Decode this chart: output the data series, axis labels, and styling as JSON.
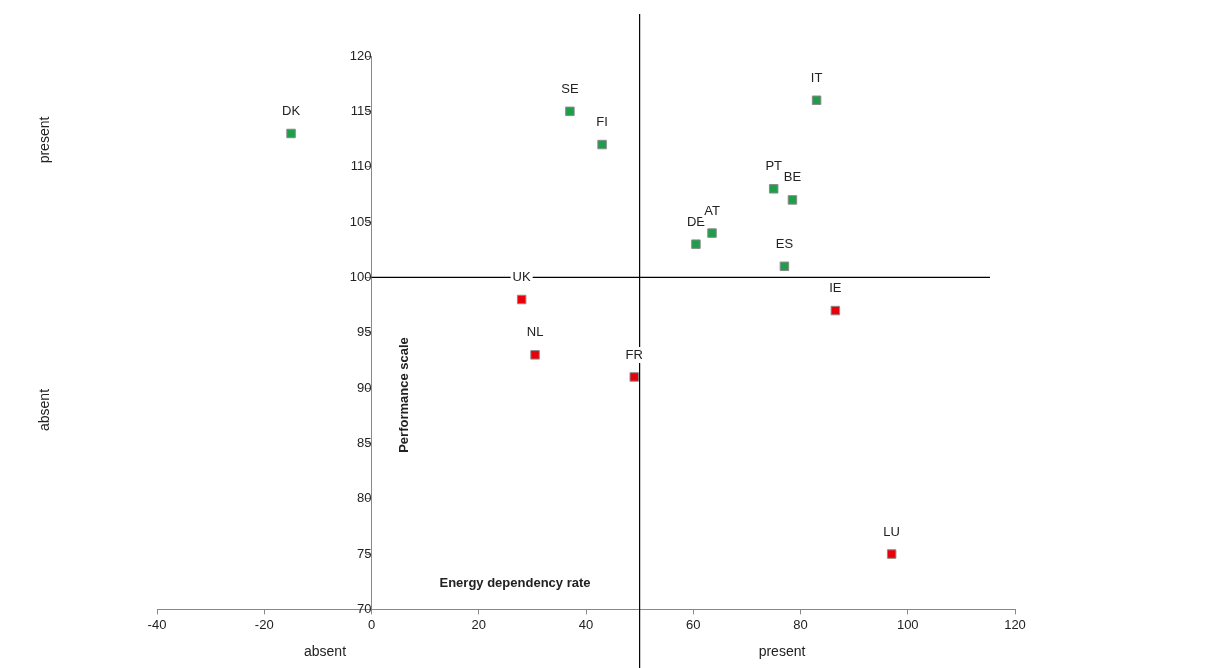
{
  "chart_data": {
    "type": "scatter",
    "xlabel": "Energy dependency rate",
    "ylabel": "Performance scale",
    "xlim": [
      -40,
      120
    ],
    "xticks": [
      -40,
      -20,
      0,
      20,
      40,
      60,
      80,
      100,
      120
    ],
    "ylim": [
      70,
      120
    ],
    "yticks": [
      70,
      75,
      80,
      85,
      90,
      95,
      100,
      105,
      110,
      115,
      120
    ],
    "grid": false,
    "legend": false,
    "marker": "square",
    "series": [
      {
        "color": "#1e9e4a",
        "x": [
          -15,
          37,
          43,
          83,
          75,
          78.5,
          60.5,
          63.5,
          77
        ],
        "values": [
          113,
          115,
          112,
          116,
          108,
          107,
          103,
          104,
          101
        ]
      },
      {
        "color": "#e8000b",
        "x": [
          28,
          30.5,
          49,
          86.5,
          97
        ],
        "values": [
          98,
          93,
          91,
          97,
          75
        ]
      }
    ],
    "ref_lines": [
      {
        "axis": "x",
        "value": 50,
        "color": "#000000"
      },
      {
        "axis": "y",
        "value": 100,
        "color": "#000000"
      }
    ],
    "annotations": [
      "present",
      "absent",
      "absent",
      "present",
      {
        "text": "DK",
        "x": -15,
        "y": 113
      },
      {
        "text": "SE",
        "x": 37,
        "y": 115
      },
      {
        "text": "FI",
        "x": 43,
        "y": 112
      },
      {
        "text": "IT",
        "x": 83,
        "y": 116
      },
      {
        "text": "PT",
        "x": 75,
        "y": 108
      },
      {
        "text": "BE",
        "x": 78.5,
        "y": 107
      },
      {
        "text": "DE",
        "x": 60.5,
        "y": 103
      },
      {
        "text": "AT",
        "x": 63.5,
        "y": 104
      },
      {
        "text": "ES",
        "x": 77,
        "y": 101
      },
      {
        "text": "UK",
        "x": 28,
        "y": 98
      },
      {
        "text": "NL",
        "x": 30.5,
        "y": 93
      },
      {
        "text": "FR",
        "x": 49,
        "y": 91
      },
      {
        "text": "IE",
        "x": 86.5,
        "y": 97
      },
      {
        "text": "LU",
        "x": 97,
        "y": 75
      }
    ]
  }
}
